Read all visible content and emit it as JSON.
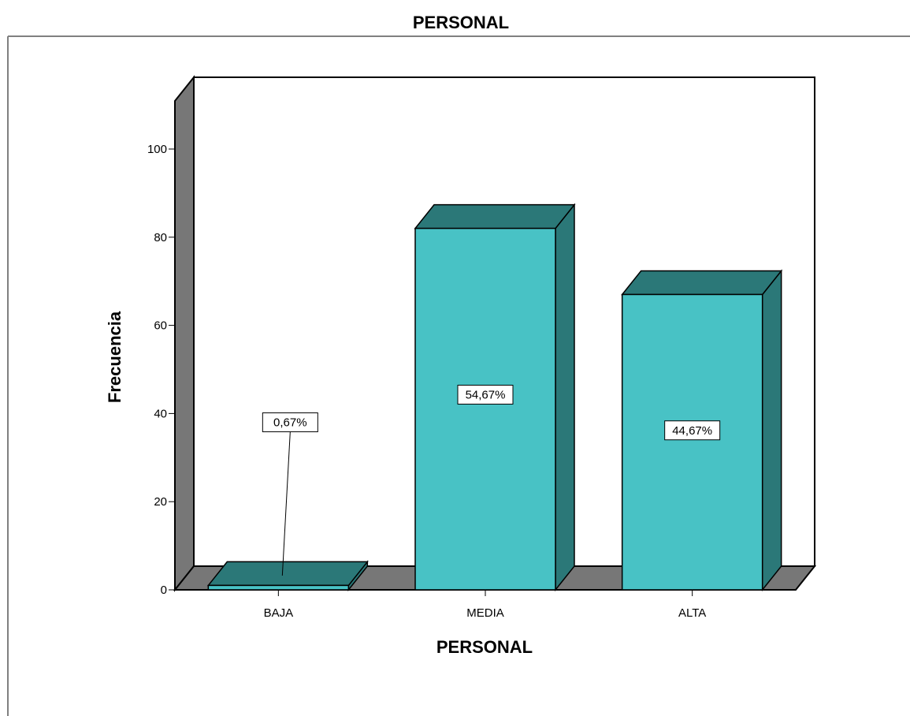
{
  "chart_data": {
    "type": "bar",
    "title": "PERSONAL",
    "xlabel": "PERSONAL",
    "ylabel": "Frecuencia",
    "categories": [
      "BAJA",
      "MEDIA",
      "ALTA"
    ],
    "values": [
      1,
      82,
      67
    ],
    "data_labels": [
      "0,67%",
      "54,67%",
      "44,67%"
    ],
    "ylim": [
      0,
      100
    ],
    "yticks": [
      "0",
      "20",
      "40",
      "60",
      "80",
      "100"
    ],
    "style": "3d",
    "grid": false,
    "colors": {
      "bar_front": "#48c2c5",
      "bar_side": "#2b7878",
      "bar_top": "#2b7878",
      "wall_side": "#777777",
      "floor": "#777777",
      "border": "#000000"
    }
  }
}
